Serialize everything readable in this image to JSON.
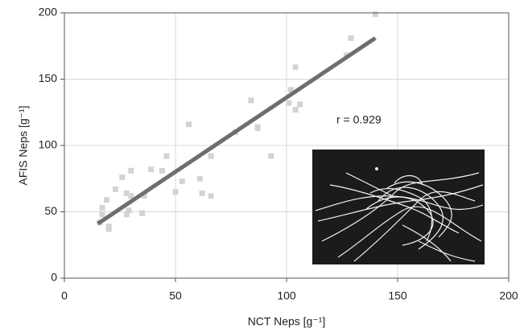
{
  "chart_data": {
    "type": "scatter",
    "x_label": "NCT Neps [g⁻¹]",
    "y_label": "AFIS Neps [g⁻¹]",
    "annotation": "r = 0.929",
    "xlim": [
      0,
      200
    ],
    "xticks": [
      0,
      50,
      100,
      150,
      200
    ],
    "ylim": [
      0,
      200
    ],
    "yticks": [
      0,
      50,
      100,
      150,
      200
    ],
    "grid": true,
    "series": [
      {
        "color": "#d3d3d3",
        "x": [
          140,
          129,
          127,
          104,
          102,
          101,
          106,
          104,
          84,
          56,
          87,
          87,
          77,
          93,
          46,
          66,
          39,
          44,
          30,
          61,
          53,
          26,
          23,
          36,
          30,
          50,
          28,
          62,
          66,
          19,
          17,
          29,
          28,
          35,
          16,
          20,
          20,
          17
        ],
        "values": [
          199,
          181,
          168,
          159,
          142,
          132,
          131,
          127,
          134,
          116,
          114,
          113,
          110,
          92,
          92,
          92,
          82,
          81,
          81,
          75,
          73,
          76,
          67,
          62,
          62,
          65,
          64,
          64,
          62,
          59,
          53,
          51,
          48,
          49,
          42,
          39,
          37,
          48
        ]
      }
    ],
    "fit": {
      "color": "#6e6e6e",
      "x": [
        15,
        140
      ],
      "values": [
        41,
        181
      ]
    }
  }
}
